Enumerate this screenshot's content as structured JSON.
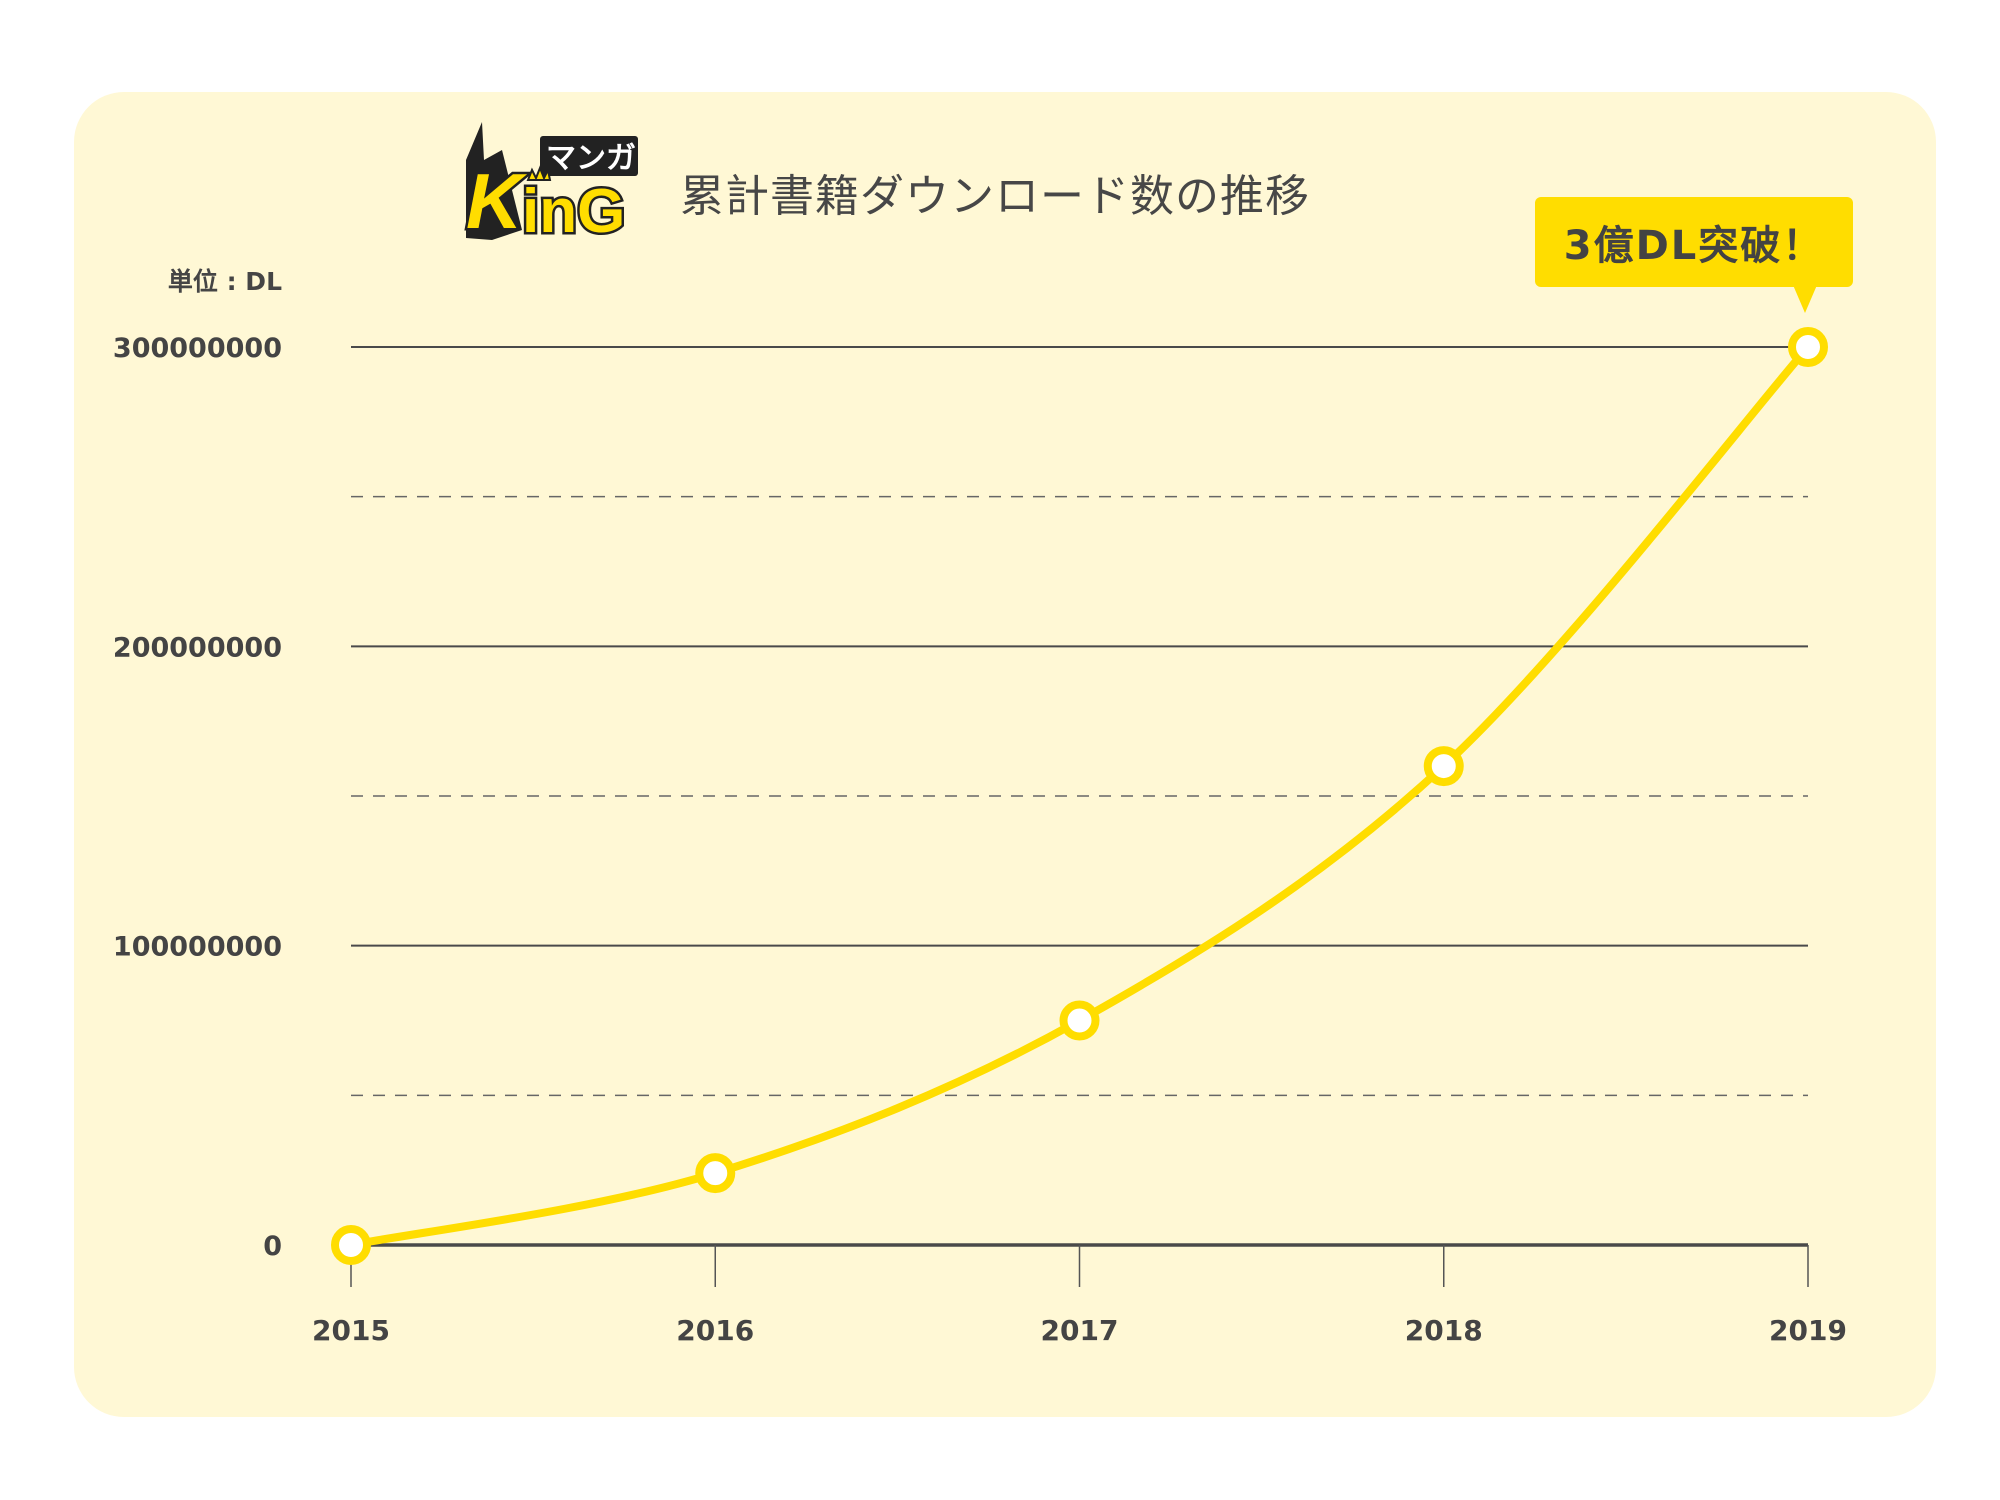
{
  "logo": {
    "text_main": "KinG",
    "text_sub": "マンガ"
  },
  "title": "累計書籍ダウンロード数の推移",
  "callout": "3億DL突破！",
  "colors": {
    "background": "#fff8d5",
    "line": "#ffdd00",
    "text": "#444444",
    "grid": "#4a4a4a"
  },
  "chart_data": {
    "type": "line",
    "title": "累計書籍ダウンロード数の推移",
    "unit_label": "単位 : DL",
    "x": [
      "2015",
      "2016",
      "2017",
      "2018",
      "2019"
    ],
    "series": [
      {
        "name": "累計書籍ダウンロード数",
        "values": [
          0,
          24000000,
          75000000,
          160000000,
          300000000
        ]
      }
    ],
    "ylim": [
      0,
      300000000
    ],
    "yticks": [
      "0",
      "100000000",
      "200000000",
      "300000000"
    ],
    "minor_grid": [
      50000000,
      150000000,
      250000000
    ],
    "grid": true,
    "annotation": "3億DL突破！"
  }
}
